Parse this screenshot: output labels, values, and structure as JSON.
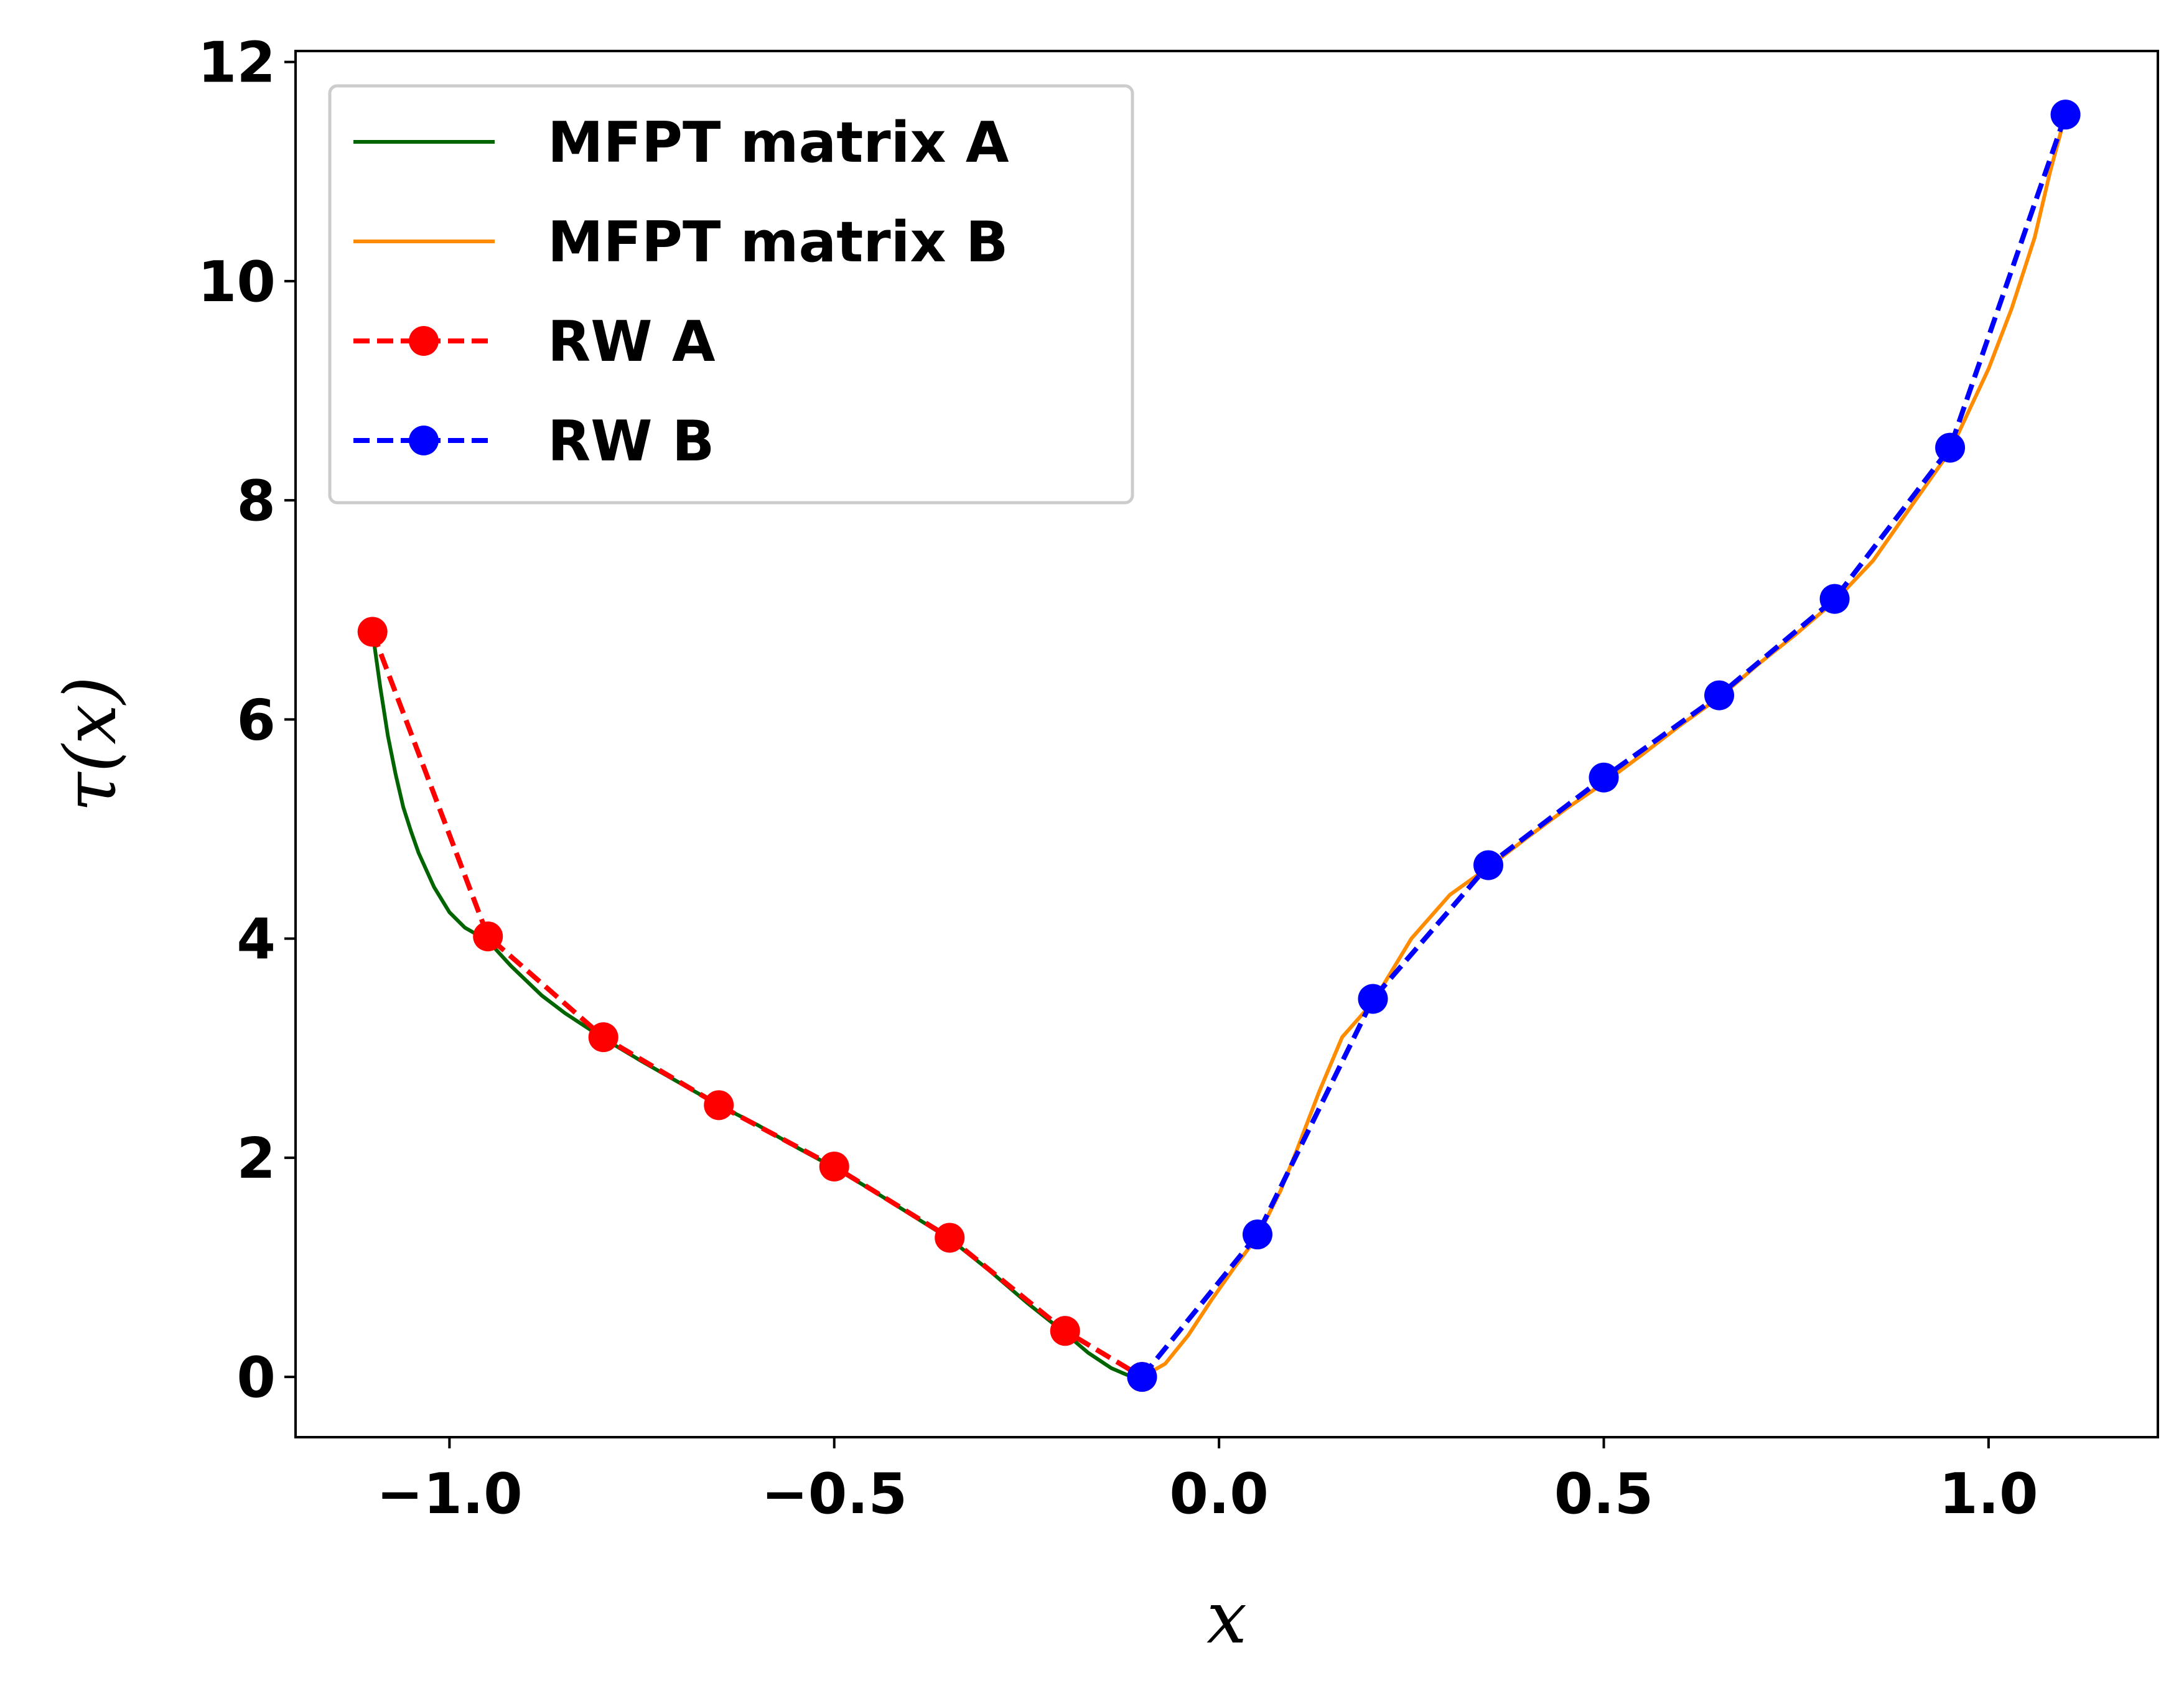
{
  "chart_data": {
    "type": "line",
    "xlabel": "x",
    "ylabel": "τ(x)",
    "xlim": [
      -1.2,
      1.22
    ],
    "ylim": [
      -0.55,
      12.1
    ],
    "x_ticks": [
      -1.0,
      -0.5,
      0.0,
      0.5,
      1.0
    ],
    "x_tick_labels": [
      "−1.0",
      "−0.5",
      "0.0",
      "0.5",
      "1.0"
    ],
    "y_ticks": [
      0,
      2,
      4,
      6,
      8,
      10,
      12
    ],
    "y_tick_labels": [
      "0",
      "2",
      "4",
      "6",
      "8",
      "10",
      "12"
    ],
    "grid": false,
    "legend_position": "upper-left",
    "series": [
      {
        "name": "MFPT matrix A",
        "style": "solid",
        "color": "#006400",
        "x": [
          -1.1,
          -1.09,
          -1.08,
          -1.07,
          -1.06,
          -1.05,
          -1.04,
          -1.02,
          -1.0,
          -0.98,
          -0.95,
          -0.92,
          -0.88,
          -0.85,
          -0.8,
          -0.75,
          -0.7,
          -0.65,
          -0.6,
          -0.55,
          -0.5,
          -0.45,
          -0.4,
          -0.35,
          -0.3,
          -0.25,
          -0.2,
          -0.17,
          -0.14,
          -0.12,
          -0.1
        ],
        "y": [
          6.8,
          6.3,
          5.85,
          5.5,
          5.2,
          4.98,
          4.78,
          4.47,
          4.24,
          4.1,
          3.98,
          3.75,
          3.48,
          3.32,
          3.09,
          2.88,
          2.68,
          2.48,
          2.3,
          2.1,
          1.91,
          1.7,
          1.48,
          1.26,
          0.98,
          0.68,
          0.4,
          0.22,
          0.08,
          0.02,
          0.0
        ]
      },
      {
        "name": "MFPT matrix B",
        "style": "solid",
        "color": "#ff8c00",
        "x": [
          -0.1,
          -0.07,
          -0.04,
          -0.01,
          0.02,
          0.05,
          0.08,
          0.1,
          0.13,
          0.16,
          0.2,
          0.25,
          0.3,
          0.35,
          0.4,
          0.45,
          0.5,
          0.55,
          0.6,
          0.65,
          0.7,
          0.75,
          0.8,
          0.85,
          0.9,
          0.95,
          1.0,
          1.03,
          1.06,
          1.08,
          1.1
        ],
        "y": [
          0.0,
          0.12,
          0.38,
          0.7,
          1.0,
          1.28,
          1.7,
          2.05,
          2.6,
          3.1,
          3.42,
          4.0,
          4.4,
          4.65,
          4.92,
          5.18,
          5.42,
          5.68,
          5.95,
          6.2,
          6.5,
          6.78,
          7.08,
          7.45,
          7.95,
          8.45,
          9.2,
          9.75,
          10.4,
          11.0,
          11.52
        ]
      },
      {
        "name": "RW A",
        "style": "dashed-markers",
        "color": "#ff0000",
        "x": [
          -1.1,
          -0.95,
          -0.8,
          -0.65,
          -0.5,
          -0.35,
          -0.2,
          -0.1
        ],
        "y": [
          6.8,
          4.02,
          3.1,
          2.48,
          1.92,
          1.27,
          0.42,
          0.0
        ]
      },
      {
        "name": "RW B",
        "style": "dashed-markers",
        "color": "#0000ff",
        "x": [
          -0.1,
          0.05,
          0.2,
          0.35,
          0.5,
          0.65,
          0.8,
          0.95,
          1.1
        ],
        "y": [
          0.0,
          1.3,
          3.45,
          4.67,
          5.47,
          6.22,
          7.1,
          8.48,
          11.52
        ]
      }
    ]
  }
}
